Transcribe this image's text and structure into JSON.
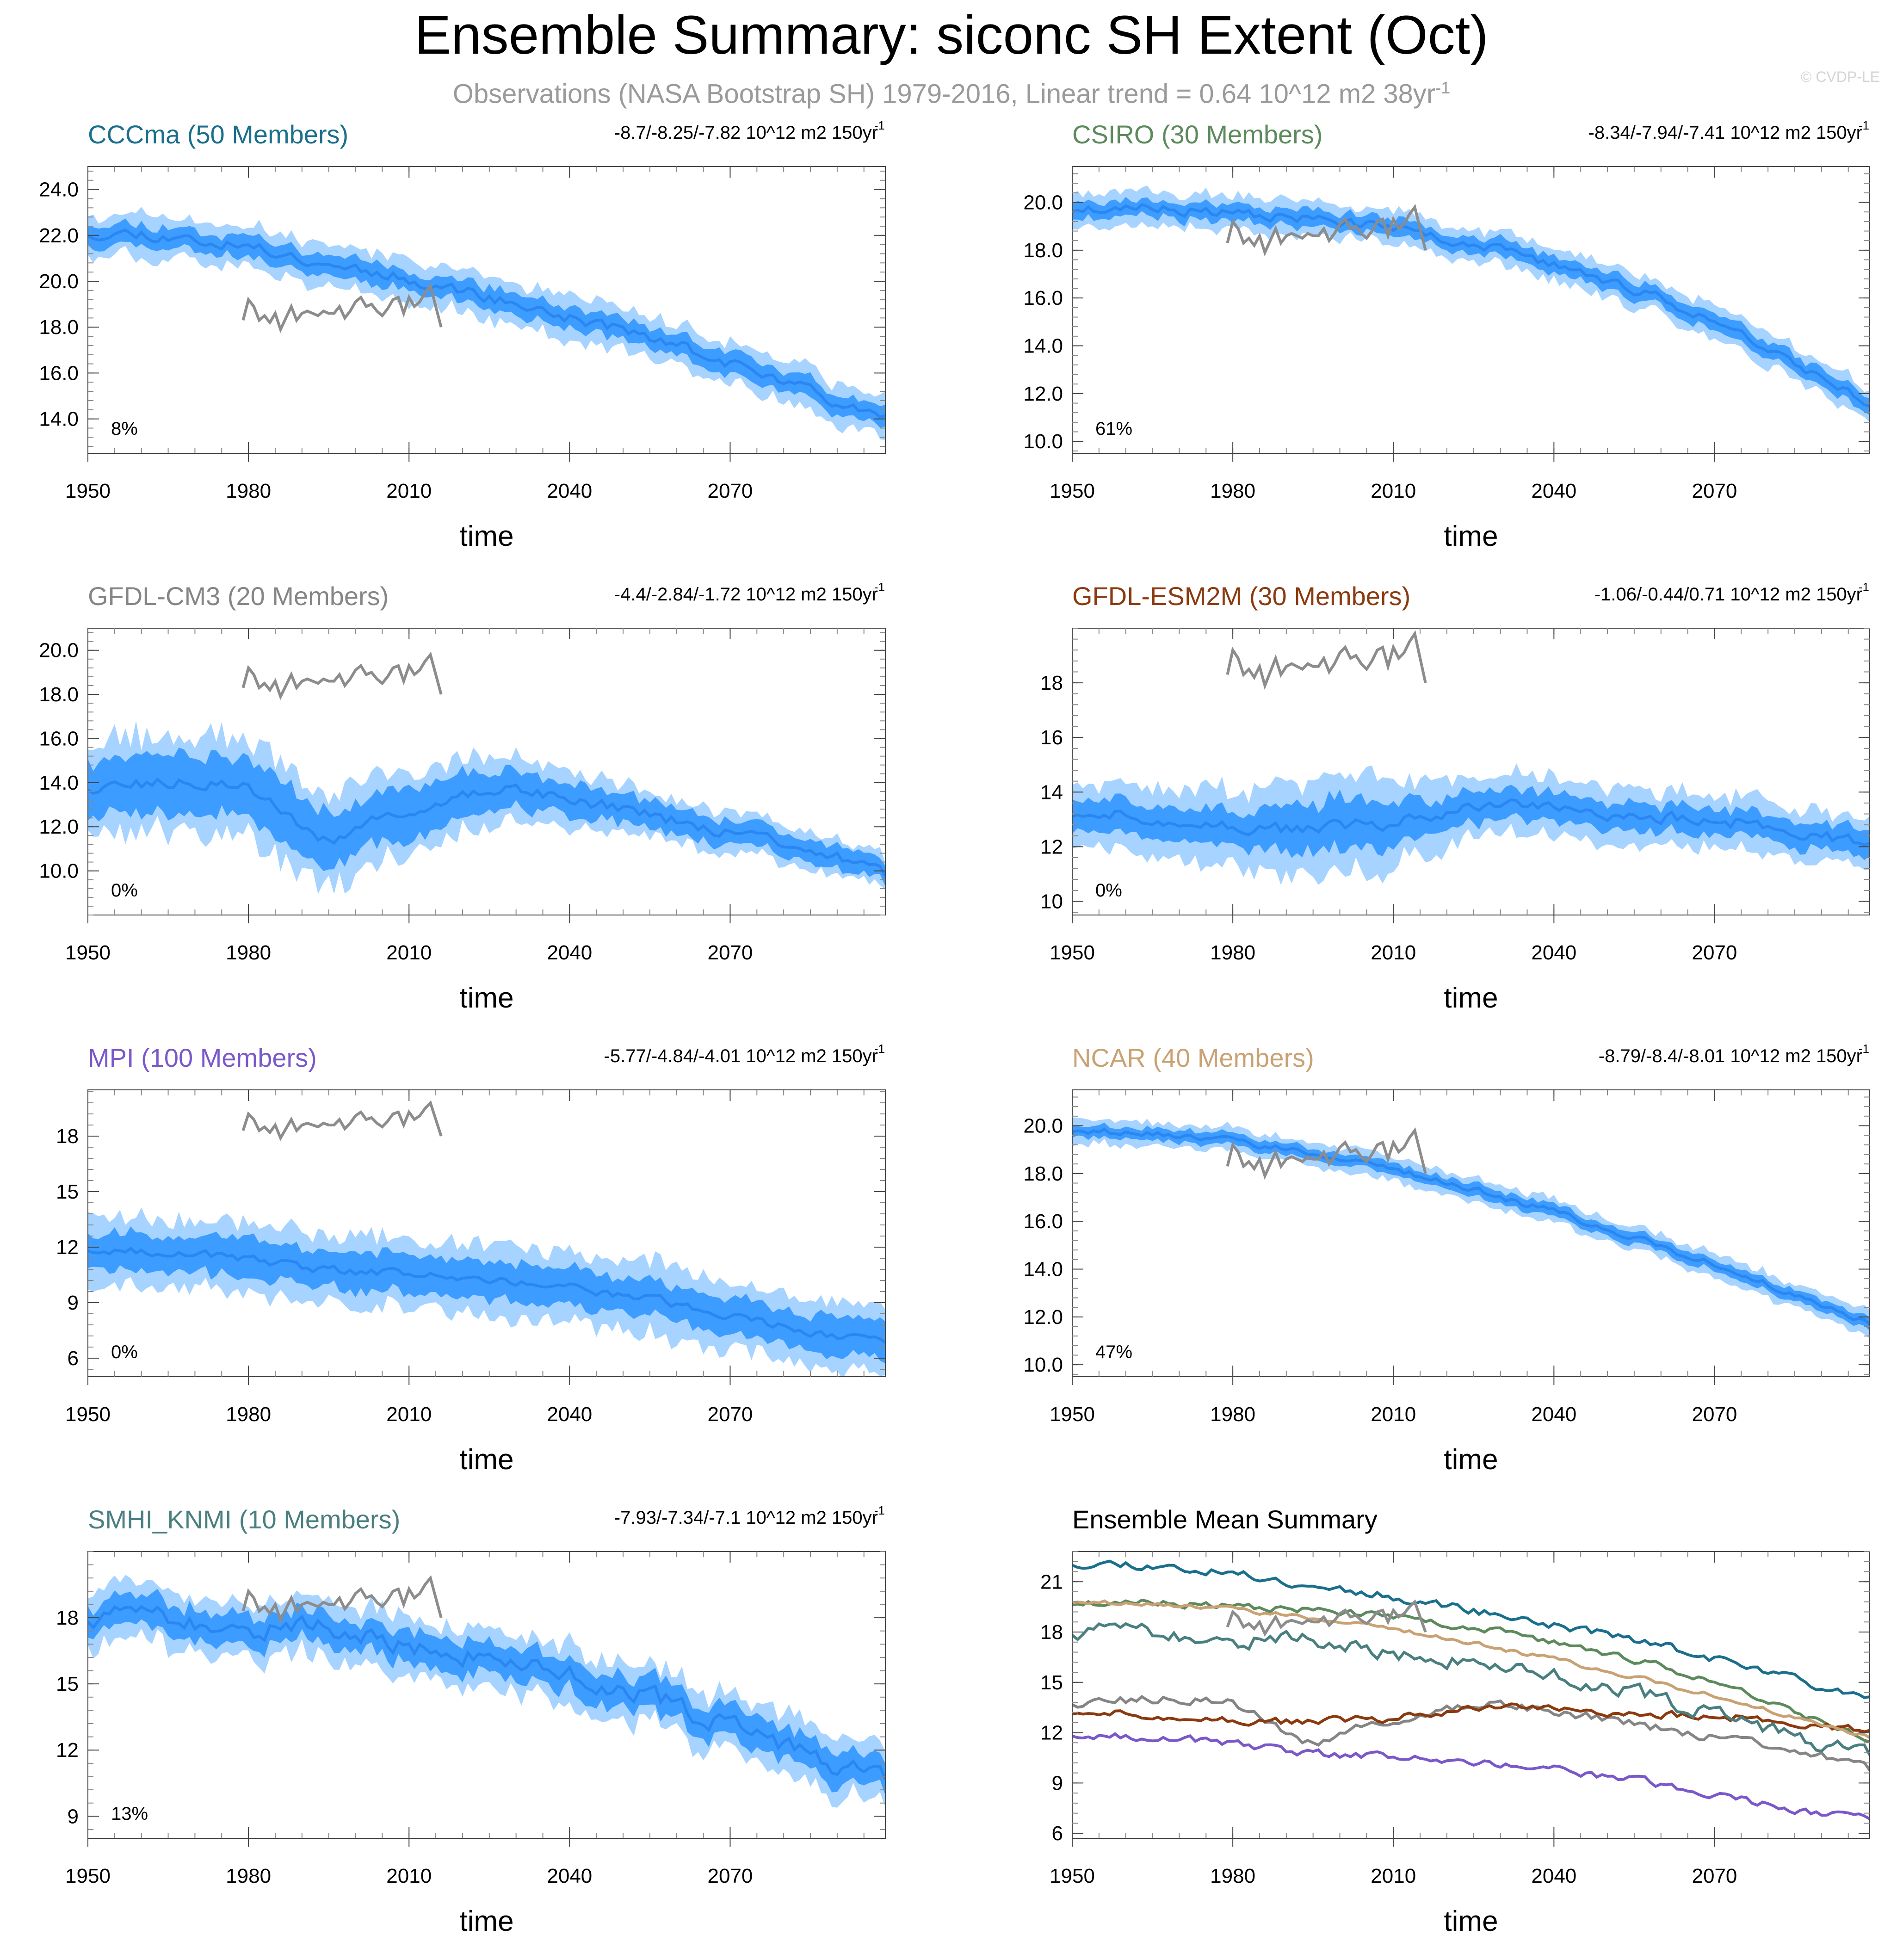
{
  "title": "Ensemble Summary: siconc SH Extent (Oct)",
  "subtitle": {
    "text": "Observations (NASA Bootstrap SH) 1979-2016, Linear trend = 0.64 10^12 m2 38yr",
    "exponent": "-1"
  },
  "credit": "© CVDP-LE",
  "colors": {
    "band_outer": "#a6d3ff",
    "band_inner": "#3d9cff",
    "mean_line": "#2a86f0",
    "observations": "#8c8c8c",
    "axis": "#000000"
  },
  "chart_data": [
    {
      "type": "area",
      "id": "cccma",
      "title": "CCCma (50 Members)",
      "title_color": "#1a6f8c",
      "trend_text": "-8.7/-8.25/-7.82 10^12 m2 150yr",
      "trend_exp": "-1",
      "pct_label": "8%",
      "xlabel": "time",
      "xlim": [
        1950,
        2099
      ],
      "xticks": [
        1950,
        1980,
        2010,
        2040,
        2070
      ],
      "xtick_labels": [
        "1950",
        "1980",
        "2010",
        "2040",
        "2070"
      ],
      "ylim": [
        12.5,
        25.0
      ],
      "yticks": [
        14,
        16,
        18,
        20,
        22,
        24
      ],
      "ytick_labels": [
        "14.0",
        "16.0",
        "18.0",
        "20.0",
        "22.0",
        "24.0"
      ],
      "mean_knots": [
        [
          1950,
          22.1
        ],
        [
          1960,
          22.1
        ],
        [
          1970,
          21.8
        ],
        [
          1980,
          21.5
        ],
        [
          1990,
          21.0
        ],
        [
          2000,
          20.6
        ],
        [
          2010,
          20.1
        ],
        [
          2020,
          19.6
        ],
        [
          2030,
          19.0
        ],
        [
          2040,
          18.4
        ],
        [
          2050,
          17.9
        ],
        [
          2060,
          17.2
        ],
        [
          2070,
          16.4
        ],
        [
          2080,
          15.6
        ],
        [
          2090,
          14.8
        ],
        [
          2099,
          14.3
        ]
      ],
      "inner_halfwidth": 0.45,
      "outer_halfwidth": 0.9,
      "mean_noise": 0.22,
      "seed": 11
    },
    {
      "type": "area",
      "id": "csiro",
      "title": "CSIRO (30 Members)",
      "title_color": "#5d8a5d",
      "trend_text": "-8.34/-7.94/-7.41 10^12 m2 150yr",
      "trend_exp": "-1",
      "pct_label": "61%",
      "xlabel": "time",
      "xlim": [
        1950,
        2099
      ],
      "xticks": [
        1950,
        1980,
        2010,
        2040,
        2070
      ],
      "xtick_labels": [
        "1950",
        "1980",
        "2010",
        "2040",
        "2070"
      ],
      "ylim": [
        9.5,
        21.5
      ],
      "yticks": [
        10,
        12,
        14,
        16,
        18,
        20
      ],
      "ytick_labels": [
        "10.0",
        "12.0",
        "14.0",
        "16.0",
        "18.0",
        "20.0"
      ],
      "mean_knots": [
        [
          1950,
          19.7
        ],
        [
          1965,
          19.8
        ],
        [
          1980,
          19.5
        ],
        [
          1990,
          19.4
        ],
        [
          2000,
          19.2
        ],
        [
          2010,
          18.9
        ],
        [
          2020,
          18.5
        ],
        [
          2030,
          18.0
        ],
        [
          2040,
          17.4
        ],
        [
          2050,
          16.7
        ],
        [
          2060,
          16.0
        ],
        [
          2070,
          15.0
        ],
        [
          2080,
          14.0
        ],
        [
          2090,
          12.7
        ],
        [
          2099,
          11.6
        ]
      ],
      "inner_halfwidth": 0.35,
      "outer_halfwidth": 0.7,
      "mean_noise": 0.18,
      "seed": 23
    },
    {
      "type": "area",
      "id": "gfdl-cm3",
      "title": "GFDL-CM3 (20 Members)",
      "title_color": "#858585",
      "trend_text": "-4.4/-2.84/-1.72 10^12 m2 150yr",
      "trend_exp": "-1",
      "pct_label": "0%",
      "xlabel": "time",
      "xlim": [
        1950,
        2099
      ],
      "xticks": [
        1950,
        1980,
        2010,
        2040,
        2070
      ],
      "xtick_labels": [
        "1950",
        "1980",
        "2010",
        "2040",
        "2070"
      ],
      "ylim": [
        8.0,
        21.0
      ],
      "yticks": [
        10,
        12,
        14,
        16,
        18,
        20
      ],
      "ytick_labels": [
        "10.0",
        "12.0",
        "14.0",
        "16.0",
        "18.0",
        "20.0"
      ],
      "mean_knots": [
        [
          1950,
          13.8
        ],
        [
          1960,
          13.9
        ],
        [
          1970,
          14.0
        ],
        [
          1980,
          13.8
        ],
        [
          1985,
          13.0
        ],
        [
          1990,
          11.8
        ],
        [
          1995,
          11.4
        ],
        [
          2000,
          11.8
        ],
        [
          2010,
          12.8
        ],
        [
          2020,
          13.3
        ],
        [
          2030,
          13.8
        ],
        [
          2040,
          13.3
        ],
        [
          2050,
          12.8
        ],
        [
          2060,
          12.2
        ],
        [
          2070,
          11.8
        ],
        [
          2080,
          11.2
        ],
        [
          2090,
          10.6
        ],
        [
          2099,
          9.8
        ]
      ],
      "inner_halfwidth": 1.3,
      "outer_halfwidth": 2.2,
      "mean_noise": 0.25,
      "seed": 37,
      "band_scale_knots": [
        [
          1950,
          1.0
        ],
        [
          1980,
          1.0
        ],
        [
          2000,
          0.95
        ],
        [
          2040,
          0.55
        ],
        [
          2070,
          0.4
        ],
        [
          2099,
          0.35
        ]
      ]
    },
    {
      "type": "area",
      "id": "gfdl-esm2m",
      "title": "GFDL-ESM2M (30 Members)",
      "title_color": "#8b3a0f",
      "trend_text": "-1.06/-0.44/0.71 10^12 m2 150yr",
      "trend_exp": "-1",
      "pct_label": "0%",
      "xlabel": "time",
      "xlim": [
        1950,
        2099
      ],
      "xticks": [
        1950,
        1980,
        2010,
        2040,
        2070
      ],
      "xtick_labels": [
        "1950",
        "1980",
        "2010",
        "2040",
        "2070"
      ],
      "ylim": [
        9.5,
        20.0
      ],
      "yticks": [
        10,
        12,
        14,
        16,
        18
      ],
      "ytick_labels": [
        "10",
        "12",
        "14",
        "16",
        "18"
      ],
      "mean_knots": [
        [
          1950,
          13.2
        ],
        [
          1965,
          13.1
        ],
        [
          1980,
          12.7
        ],
        [
          1995,
          12.6
        ],
        [
          2010,
          12.9
        ],
        [
          2030,
          13.6
        ],
        [
          2045,
          13.3
        ],
        [
          2060,
          13.1
        ],
        [
          2075,
          12.9
        ],
        [
          2090,
          12.4
        ],
        [
          2099,
          12.0
        ]
      ],
      "inner_halfwidth": 0.65,
      "outer_halfwidth": 1.3,
      "mean_noise": 0.2,
      "seed": 51,
      "band_scale_knots": [
        [
          1950,
          0.8
        ],
        [
          1985,
          1.1
        ],
        [
          2000,
          1.5
        ],
        [
          2015,
          1.0
        ],
        [
          2040,
          0.8
        ],
        [
          2099,
          0.7
        ]
      ]
    },
    {
      "type": "area",
      "id": "mpi",
      "title": "MPI (100 Members)",
      "title_color": "#7a58c9",
      "trend_text": "-5.77/-4.84/-4.01 10^12 m2 150yr",
      "trend_exp": "-1",
      "pct_label": "0%",
      "xlabel": "time",
      "xlim": [
        1950,
        2099
      ],
      "xticks": [
        1950,
        1980,
        2010,
        2040,
        2070
      ],
      "xtick_labels": [
        "1950",
        "1980",
        "2010",
        "2040",
        "2070"
      ],
      "ylim": [
        5.0,
        20.5
      ],
      "yticks": [
        6,
        9,
        12,
        15,
        18
      ],
      "ytick_labels": [
        "6",
        "9",
        "12",
        "15",
        "18"
      ],
      "mean_knots": [
        [
          1950,
          11.9
        ],
        [
          1965,
          11.8
        ],
        [
          1980,
          11.3
        ],
        [
          1995,
          10.7
        ],
        [
          2010,
          10.6
        ],
        [
          2025,
          10.2
        ],
        [
          2040,
          9.8
        ],
        [
          2055,
          9.2
        ],
        [
          2070,
          8.4
        ],
        [
          2085,
          7.4
        ],
        [
          2099,
          6.8
        ]
      ],
      "inner_halfwidth": 1.0,
      "outer_halfwidth": 1.9,
      "mean_noise": 0.2,
      "seed": 67
    },
    {
      "type": "area",
      "id": "ncar",
      "title": "NCAR (40 Members)",
      "title_color": "#c9a274",
      "trend_text": "-8.79/-8.4/-8.01 10^12 m2 150yr",
      "trend_exp": "-1",
      "pct_label": "47%",
      "xlabel": "time",
      "xlim": [
        1950,
        2099
      ],
      "xticks": [
        1950,
        1980,
        2010,
        2040,
        2070
      ],
      "xtick_labels": [
        "1950",
        "1980",
        "2010",
        "2040",
        "2070"
      ],
      "ylim": [
        9.5,
        21.5
      ],
      "yticks": [
        10,
        12,
        14,
        16,
        18,
        20
      ],
      "ytick_labels": [
        "10.0",
        "12.0",
        "14.0",
        "16.0",
        "18.0",
        "20.0"
      ],
      "mean_knots": [
        [
          1950,
          19.8
        ],
        [
          1965,
          19.7
        ],
        [
          1980,
          19.4
        ],
        [
          1995,
          18.8
        ],
        [
          2010,
          18.2
        ],
        [
          2025,
          17.3
        ],
        [
          2040,
          16.4
        ],
        [
          2055,
          15.3
        ],
        [
          2070,
          14.2
        ],
        [
          2085,
          12.9
        ],
        [
          2099,
          11.7
        ]
      ],
      "inner_halfwidth": 0.25,
      "outer_halfwidth": 0.5,
      "mean_noise": 0.12,
      "seed": 79
    },
    {
      "type": "area",
      "id": "smhi-knmi",
      "title": "SMHI_KNMI (10 Members)",
      "title_color": "#4a7f80",
      "trend_text": "-7.93/-7.34/-7.1 10^12 m2 150yr",
      "trend_exp": "-1",
      "pct_label": "13%",
      "xlabel": "time",
      "xlim": [
        1950,
        2099
      ],
      "xticks": [
        1950,
        1980,
        2010,
        2040,
        2070
      ],
      "xtick_labels": [
        "1950",
        "1980",
        "2010",
        "2040",
        "2070"
      ],
      "ylim": [
        8.0,
        21.0
      ],
      "yticks": [
        9,
        12,
        15,
        18
      ],
      "ytick_labels": [
        "9",
        "12",
        "15",
        "18"
      ],
      "mean_knots": [
        [
          1950,
          18.0
        ],
        [
          1960,
          18.2
        ],
        [
          1970,
          17.8
        ],
        [
          1980,
          17.4
        ],
        [
          1990,
          17.7
        ],
        [
          2000,
          17.2
        ],
        [
          2010,
          16.7
        ],
        [
          2020,
          16.4
        ],
        [
          2030,
          16.1
        ],
        [
          2040,
          15.6
        ],
        [
          2050,
          14.8
        ],
        [
          2060,
          14.0
        ],
        [
          2070,
          13.1
        ],
        [
          2080,
          12.2
        ],
        [
          2090,
          11.2
        ],
        [
          2099,
          10.6
        ]
      ],
      "inner_halfwidth": 0.7,
      "outer_halfwidth": 1.3,
      "mean_noise": 0.4,
      "seed": 91
    },
    {
      "type": "line",
      "id": "ensemble-mean",
      "title": "Ensemble Mean Summary",
      "title_color": "#000000",
      "xlabel": "time",
      "xlim": [
        1950,
        2099
      ],
      "xticks": [
        1950,
        1980,
        2010,
        2040,
        2070
      ],
      "xtick_labels": [
        "1950",
        "1980",
        "2010",
        "2040",
        "2070"
      ],
      "ylim": [
        5.7,
        22.8
      ],
      "yticks": [
        6,
        9,
        12,
        15,
        18,
        21
      ],
      "ytick_labels": [
        "6",
        "9",
        "12",
        "15",
        "18",
        "21"
      ],
      "series_from": [
        "cccma",
        "csiro",
        "gfdl-cm3",
        "gfdl-esm2m",
        "mpi",
        "ncar",
        "smhi-knmi"
      ],
      "series_colors": [
        "#1a6f8c",
        "#5d8a5d",
        "#858585",
        "#8b3a0f",
        "#7a58c9",
        "#c9a274",
        "#4a7f80"
      ]
    }
  ],
  "observations": {
    "name": "NASA Bootstrap SH",
    "years": [
      1979,
      1980,
      1981,
      1982,
      1983,
      1984,
      1985,
      1986,
      1987,
      1988,
      1989,
      1990,
      1991,
      1992,
      1993,
      1994,
      1995,
      1996,
      1997,
      1998,
      1999,
      2000,
      2001,
      2002,
      2003,
      2004,
      2005,
      2006,
      2007,
      2008,
      2009,
      2010,
      2011,
      2012,
      2013,
      2014,
      2015,
      2016
    ],
    "values": [
      18.3,
      19.2,
      18.9,
      18.3,
      18.5,
      18.2,
      18.6,
      17.9,
      18.4,
      18.9,
      18.3,
      18.6,
      18.7,
      18.6,
      18.5,
      18.7,
      18.6,
      18.6,
      18.9,
      18.4,
      18.7,
      19.1,
      19.3,
      18.9,
      19.0,
      18.7,
      18.5,
      18.8,
      19.2,
      19.3,
      18.6,
      19.3,
      18.9,
      19.1,
      19.5,
      19.8,
      18.9,
      18.0
    ]
  }
}
